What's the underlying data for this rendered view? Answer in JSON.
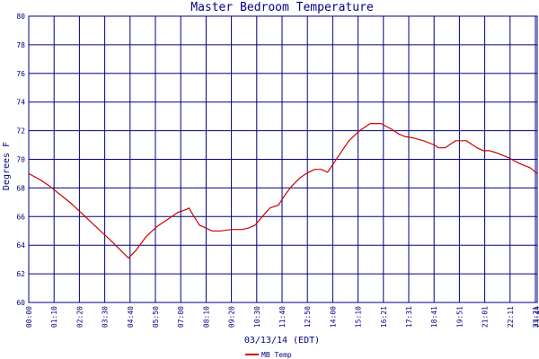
{
  "chart_data": {
    "type": "line",
    "title": "Master Bedroom Temperature",
    "xlabel": "03/13/14 (EDT)",
    "ylabel": "Degrees F",
    "ylim": [
      60,
      80
    ],
    "yticks": [
      "60",
      "62",
      "64",
      "66",
      "68",
      "70",
      "72",
      "74",
      "76",
      "78",
      "80"
    ],
    "xticks": [
      "00:00",
      "01:10",
      "02:20",
      "03:30",
      "04:40",
      "05:50",
      "07:00",
      "08:10",
      "09:20",
      "10:30",
      "11:40",
      "12:50",
      "14:00",
      "15:10",
      "16:21",
      "17:31",
      "18:41",
      "19:51",
      "21:01",
      "22:11",
      "23:21",
      "23:49"
    ],
    "grid": true,
    "legend_placement": "bottom-center",
    "colors": {
      "series": "#cc0000",
      "grid": "#000080",
      "text": "#000080"
    },
    "series": [
      {
        "name": "MB Temp",
        "x": [
          0,
          0.5,
          1,
          1.5,
          2,
          2.5,
          3,
          3.5,
          4,
          4.4,
          4.67,
          5,
          5.5,
          6,
          6.5,
          7,
          7.4,
          7.5,
          7.7,
          8,
          8.3,
          8.6,
          9,
          9.5,
          10,
          10.3,
          10.6,
          11,
          11.3,
          11.7,
          12,
          12.3,
          12.7,
          13,
          13.4,
          13.7,
          14,
          14.5,
          15,
          15.5,
          16,
          16.5,
          17,
          17.3,
          17.6,
          18,
          18.5,
          19,
          19.2,
          19.5,
          20,
          20.5,
          21,
          21.3,
          21.6,
          21.8,
          22,
          22.5,
          23,
          23.5,
          23.82
        ],
        "y": [
          69.0,
          68.6,
          68.1,
          67.5,
          66.9,
          66.2,
          65.5,
          64.8,
          64.1,
          63.5,
          63.1,
          63.6,
          64.6,
          65.3,
          65.8,
          66.3,
          66.5,
          66.6,
          66.1,
          65.4,
          65.2,
          65.0,
          65.0,
          65.1,
          65.1,
          65.2,
          65.4,
          66.1,
          66.6,
          66.8,
          67.5,
          68.1,
          68.7,
          69.0,
          69.3,
          69.3,
          69.1,
          70.2,
          71.3,
          72.0,
          72.5,
          72.5,
          72.1,
          71.8,
          71.6,
          71.5,
          71.3,
          71.0,
          70.8,
          70.8,
          71.3,
          71.3,
          70.8,
          70.6,
          70.6,
          70.5,
          70.4,
          70.1,
          69.7,
          69.4,
          69.0
        ]
      }
    ]
  }
}
